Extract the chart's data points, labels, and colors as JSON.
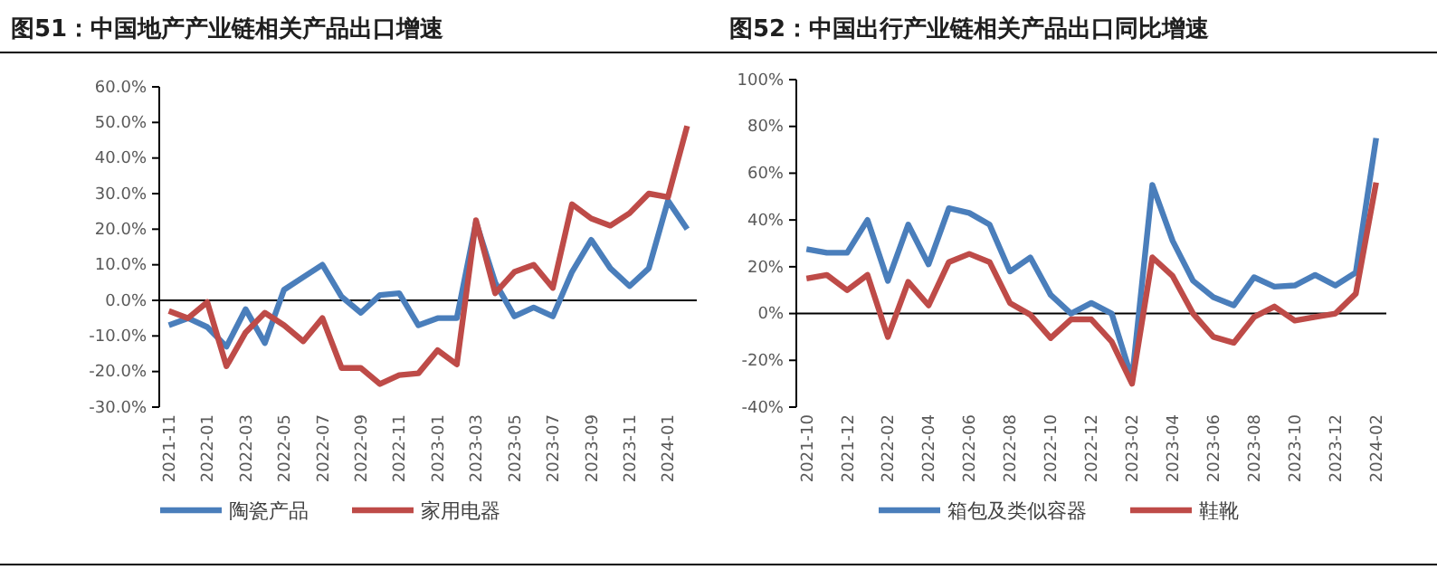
{
  "chart_data": [
    {
      "type": "line",
      "title": "图51：中国地产产业链相关产品出口增速",
      "categories": [
        "2021-11",
        null,
        "2022-01",
        null,
        "2022-03",
        null,
        "2022-05",
        null,
        "2022-07",
        null,
        "2022-09",
        null,
        "2022-11",
        null,
        "2023-01",
        null,
        "2023-03",
        null,
        "2023-05",
        null,
        "2023-07",
        null,
        "2023-09",
        null,
        "2023-11",
        null,
        "2024-01",
        null
      ],
      "series": [
        {
          "name": "陶瓷产品",
          "color": "#4a7ebb",
          "values": [
            -7,
            -5,
            -7.5,
            -13,
            -2.5,
            -12,
            3,
            6.5,
            10,
            1,
            -3.5,
            1.5,
            2,
            -7,
            -5,
            -5,
            22,
            5,
            -4.5,
            -2,
            -4.5,
            8,
            17,
            9,
            4,
            9,
            28,
            20
          ]
        },
        {
          "name": "家用电器",
          "color": "#be4b48",
          "values": [
            -3,
            -5,
            -0.5,
            -18.5,
            -9,
            -3.5,
            -7,
            -11.5,
            -5,
            -19,
            -19,
            -23.5,
            -21,
            -20.5,
            -14,
            -18,
            22.5,
            2,
            8,
            10,
            3.5,
            27,
            23,
            21,
            24.5,
            30,
            29,
            49
          ]
        }
      ],
      "ylim": [
        -30,
        60
      ],
      "yticks": [
        {
          "value": -30,
          "label": "-30.0%"
        },
        {
          "value": -20,
          "label": "-20.0%"
        },
        {
          "value": -10,
          "label": "-10.0%"
        },
        {
          "value": 0,
          "label": "0.0%"
        },
        {
          "value": 10,
          "label": "10.0%"
        },
        {
          "value": 20,
          "label": "20.0%"
        },
        {
          "value": 30,
          "label": "30.0%"
        },
        {
          "value": 40,
          "label": "40.0%"
        },
        {
          "value": 50,
          "label": "50.0%"
        },
        {
          "value": 60,
          "label": "60.0%"
        }
      ],
      "legend": "bottom",
      "marker": "none",
      "line_style": "solid"
    },
    {
      "type": "line",
      "title": "图52：中国出行产业链相关产品出口同比增速",
      "categories": [
        "2021-10",
        null,
        "2021-12",
        null,
        "2022-02",
        null,
        "2022-04",
        null,
        "2022-06",
        null,
        "2022-08",
        null,
        "2022-10",
        null,
        "2022-12",
        null,
        "2023-02",
        null,
        "2023-04",
        null,
        "2023-06",
        null,
        "2023-08",
        null,
        "2023-10",
        null,
        "2023-12",
        null,
        "2024-02"
      ],
      "series": [
        {
          "name": "箱包及类似容器",
          "color": "#4a7ebb",
          "values": [
            27.5,
            26,
            26,
            40,
            14,
            38,
            21,
            45,
            43,
            38,
            18,
            24,
            8,
            0,
            4.5,
            0,
            -28,
            55,
            31,
            14,
            7,
            3.5,
            15.5,
            11.5,
            12,
            16.5,
            12,
            17.5,
            75
          ]
        },
        {
          "name": "鞋靴",
          "color": "#be4b48",
          "values": [
            15,
            16.5,
            10,
            16.5,
            -10,
            13.5,
            3.5,
            22,
            25.5,
            22,
            4.5,
            -0.5,
            -10.5,
            -2.5,
            -2.5,
            -12,
            -30,
            24,
            16,
            0,
            -10,
            -12.5,
            -1.5,
            3,
            -3,
            -1.5,
            0,
            8.5,
            56
          ]
        }
      ],
      "ylim": [
        -40,
        100
      ],
      "yticks": [
        {
          "value": -40,
          "label": "-40%"
        },
        {
          "value": -20,
          "label": "-20%"
        },
        {
          "value": 0,
          "label": "0%"
        },
        {
          "value": 20,
          "label": "20%"
        },
        {
          "value": 40,
          "label": "40%"
        },
        {
          "value": 60,
          "label": "60%"
        },
        {
          "value": 80,
          "label": "80%"
        },
        {
          "value": 100,
          "label": "100%"
        }
      ],
      "legend": "bottom",
      "marker": "none",
      "line_style": "solid"
    }
  ]
}
